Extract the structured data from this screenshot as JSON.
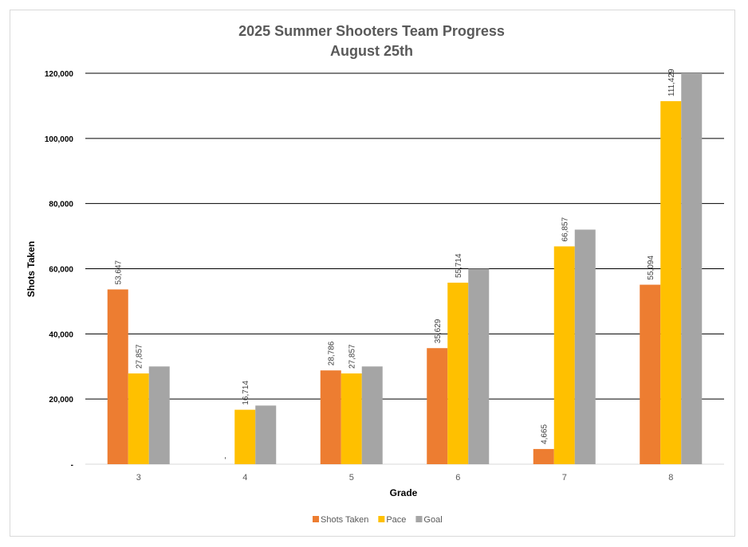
{
  "chart_data": {
    "type": "bar",
    "title": "2025 Summer Shooters Team Progress",
    "subtitle": "August 25th",
    "xlabel": "Grade",
    "ylabel": "Shots Taken",
    "categories": [
      "3",
      "4",
      "5",
      "6",
      "7",
      "8"
    ],
    "ylim": [
      0,
      120000
    ],
    "yticks": [
      0,
      20000,
      40000,
      60000,
      80000,
      100000,
      120000
    ],
    "ytick_labels": [
      "-",
      "20,000",
      "40,000",
      "60,000",
      "80,000",
      "100,000",
      "120,000"
    ],
    "grid": true,
    "legend_position": "bottom",
    "series": [
      {
        "name": "Shots Taken",
        "color": "#ed7d31",
        "values": [
          53647,
          0,
          28786,
          35629,
          4665,
          55094
        ],
        "labels": [
          "53,647",
          "-",
          "28,786",
          "35,629",
          "4,665",
          "55,094"
        ]
      },
      {
        "name": "Pace",
        "color": "#ffc000",
        "values": [
          27857,
          16714,
          27857,
          55714,
          66857,
          111429
        ],
        "labels": [
          "27,857",
          "16,714",
          "27,857",
          "55,714",
          "66,857",
          "111,429"
        ]
      },
      {
        "name": "Goal",
        "color": "#a5a5a5",
        "values": [
          30000,
          18000,
          30000,
          60000,
          72000,
          120000
        ],
        "labels": []
      }
    ]
  }
}
